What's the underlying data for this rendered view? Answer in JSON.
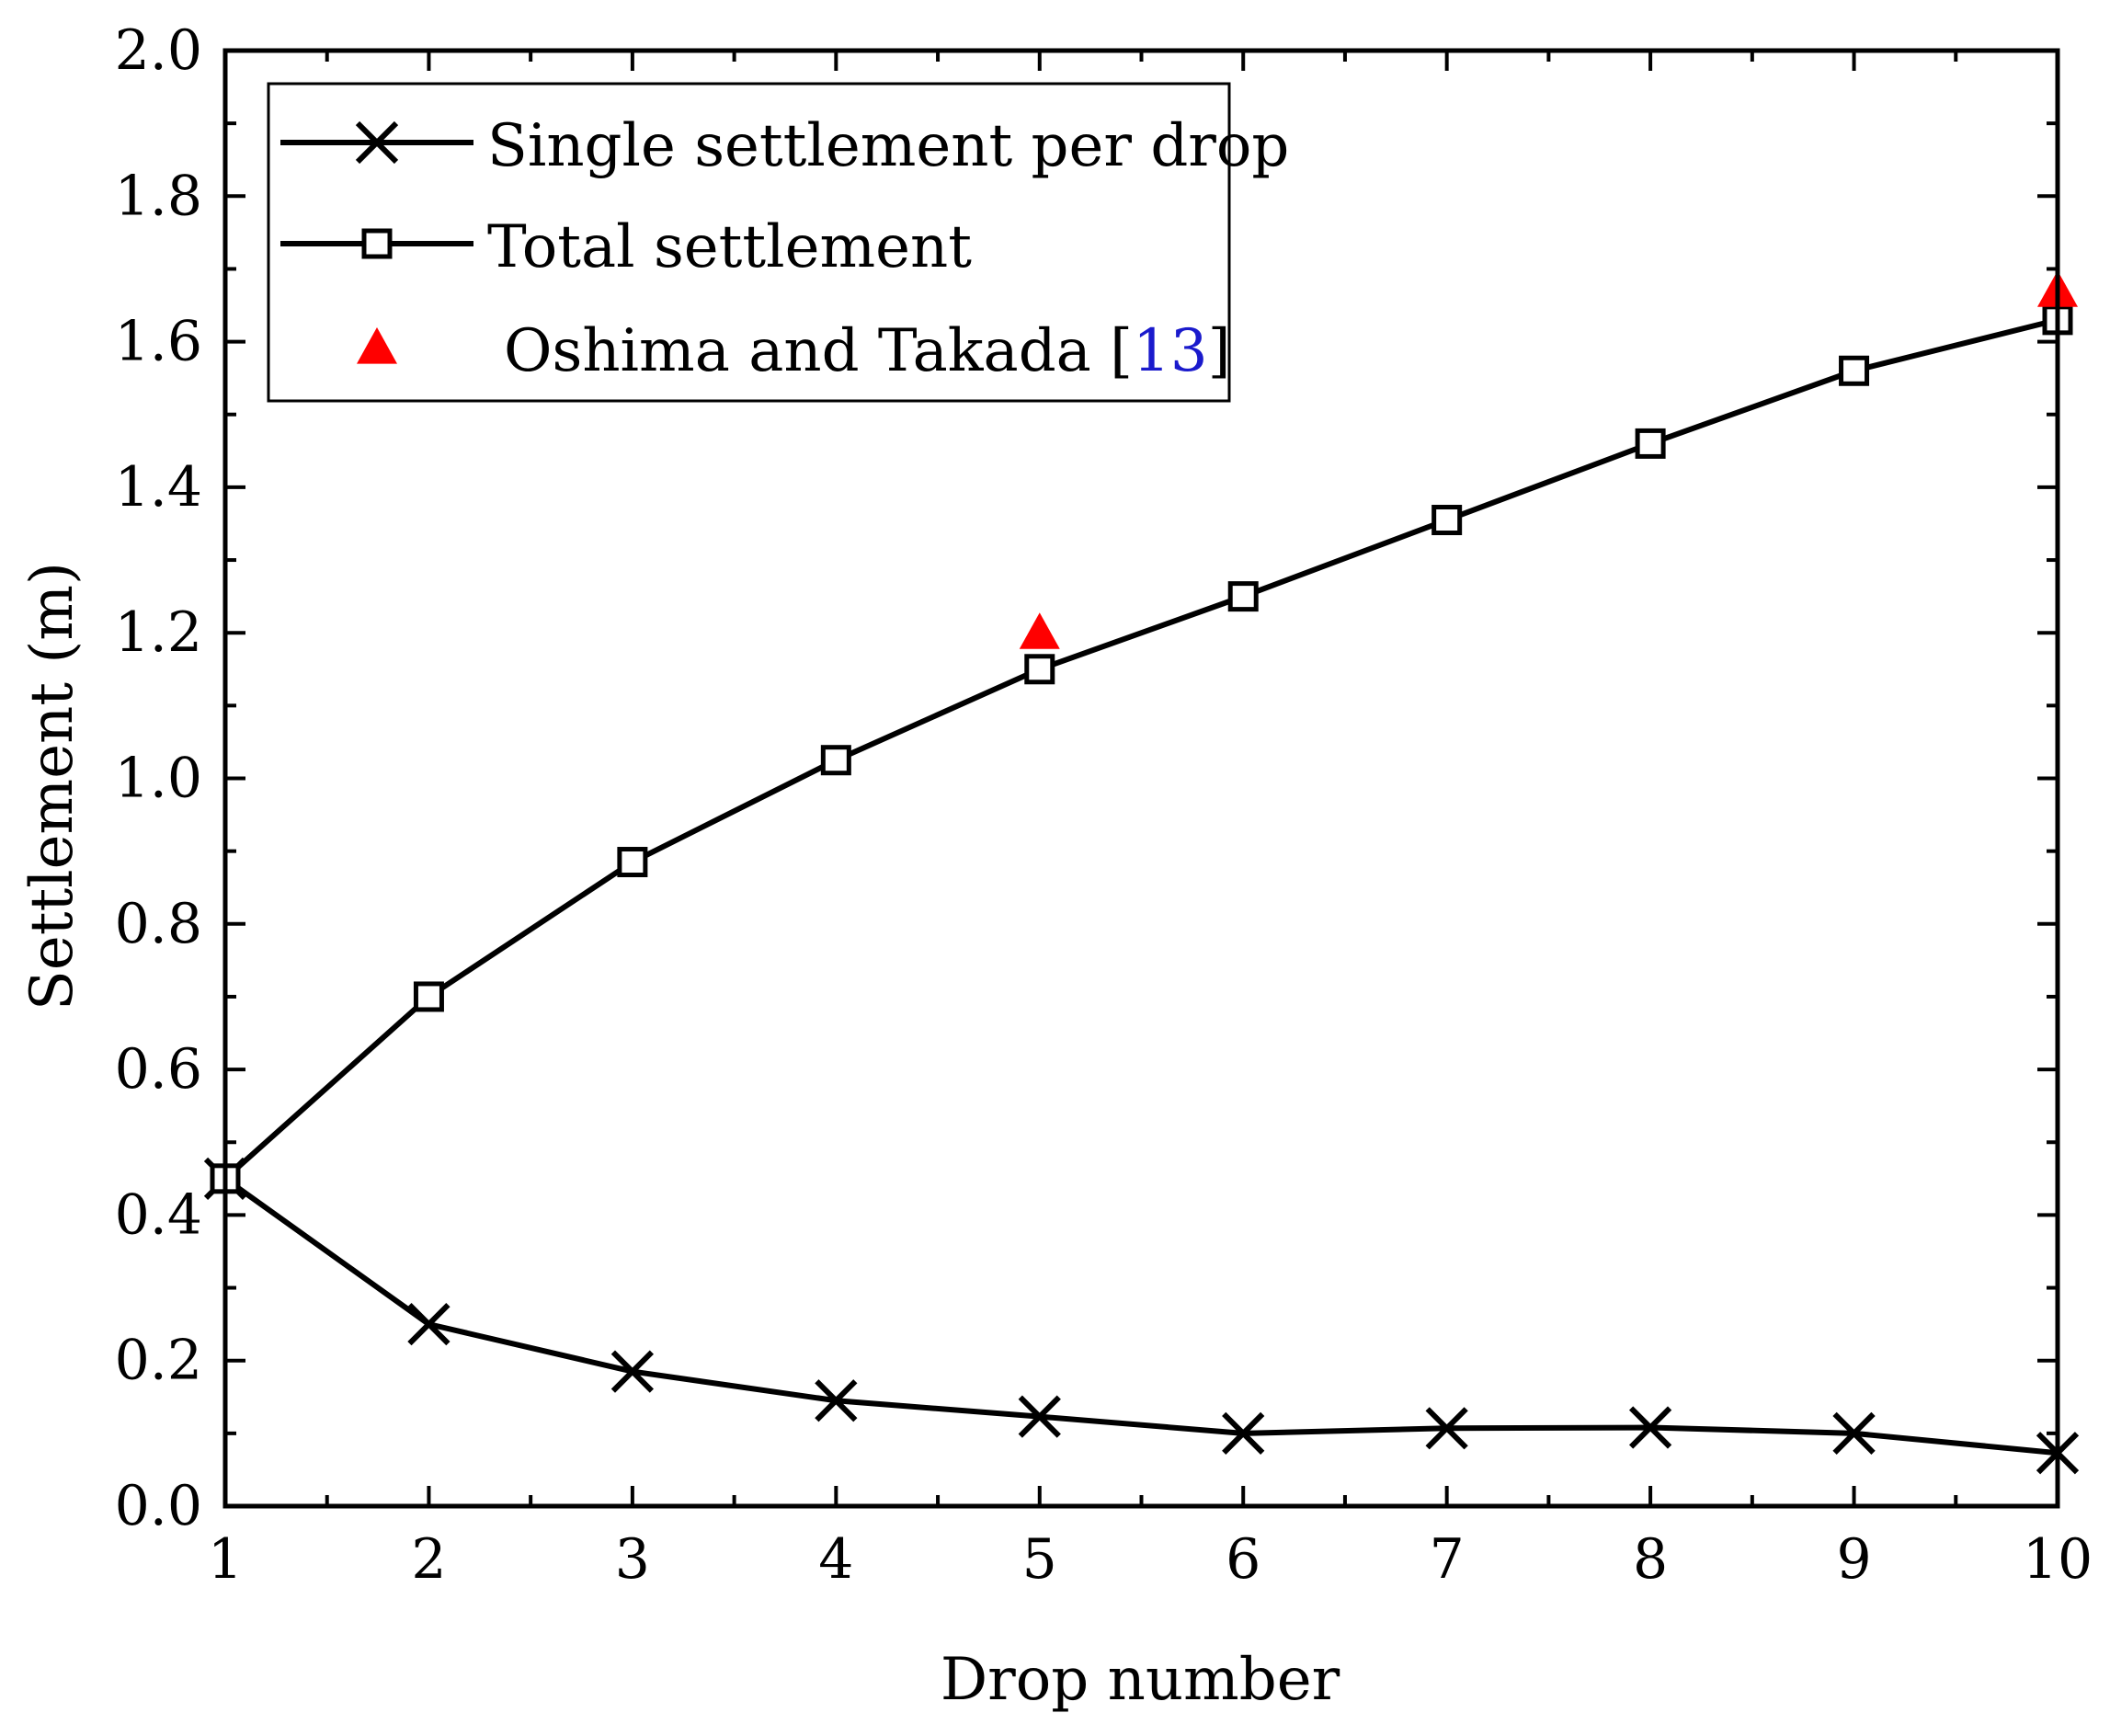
{
  "chart_data": {
    "type": "line",
    "title": "",
    "xlabel": "Drop number",
    "ylabel": "Settlement (m)",
    "xlim": [
      1,
      10
    ],
    "ylim": [
      0.0,
      2.0
    ],
    "x_ticks": [
      "1",
      "2",
      "3",
      "4",
      "5",
      "6",
      "7",
      "8",
      "9",
      "10"
    ],
    "y_ticks": [
      "0.0",
      "0.2",
      "0.4",
      "0.6",
      "0.8",
      "1.0",
      "1.2",
      "1.4",
      "1.6",
      "1.8",
      "2.0"
    ],
    "grid": false,
    "legend_position": "top-left",
    "series": [
      {
        "name": "Single settlement per drop",
        "marker": "x",
        "color": "#000000",
        "x": [
          1,
          2,
          3,
          4,
          5,
          6,
          7,
          8,
          9,
          10
        ],
        "values": [
          0.45,
          0.25,
          0.185,
          0.145,
          0.123,
          0.1,
          0.107,
          0.108,
          0.1,
          0.073
        ]
      },
      {
        "name": "Total settlement",
        "marker": "square",
        "color": "#000000",
        "x": [
          1,
          2,
          3,
          4,
          5,
          6,
          7,
          8,
          9,
          10
        ],
        "values": [
          0.45,
          0.7,
          0.885,
          1.025,
          1.15,
          1.25,
          1.355,
          1.46,
          1.56,
          1.63
        ]
      },
      {
        "name": "Oshima and Takada [13]",
        "name_prefix": "Oshima and Takada [",
        "name_ref": "13",
        "name_suffix": "]",
        "marker": "triangle",
        "color": "#ff0000",
        "x": [
          5,
          10
        ],
        "values": [
          1.2,
          1.67
        ]
      }
    ]
  }
}
